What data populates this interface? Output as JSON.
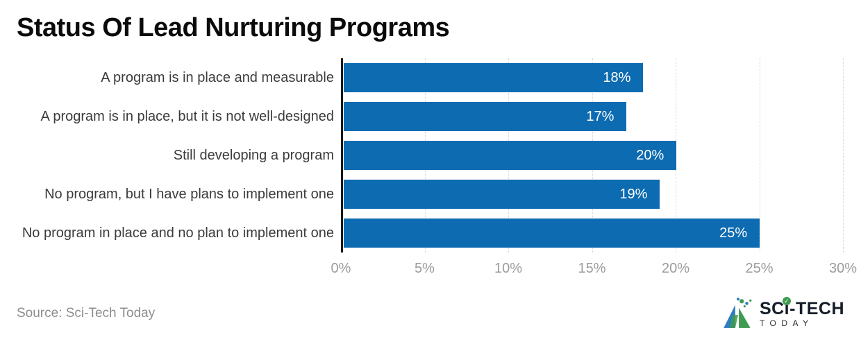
{
  "chart_data": {
    "type": "bar",
    "orientation": "horizontal",
    "title": "Status Of Lead Nurturing Programs",
    "categories": [
      "A program is in place and measurable",
      "A program is in place, but it is not well-designed",
      "Still developing a program",
      "No program, but I have plans to implement one",
      "No program in place and no plan to implement one"
    ],
    "values": [
      18,
      17,
      20,
      19,
      25
    ],
    "value_labels": [
      "18%",
      "17%",
      "20%",
      "19%",
      "25%"
    ],
    "xlim": [
      0,
      30
    ],
    "x_ticks": [
      "0%",
      "5%",
      "10%",
      "15%",
      "20%",
      "25%",
      "30%"
    ],
    "grid": true,
    "bar_color": "#0d6bb1",
    "legend": "none"
  },
  "footer": {
    "source": "Source: Sci-Tech Today",
    "logo": {
      "line1": "SCi-TECH",
      "line2": "TODAY",
      "icon": "triangle-logo-icon",
      "check_glyph": "✓",
      "blue": "#2e7cc3",
      "green": "#3f9b4f"
    }
  }
}
